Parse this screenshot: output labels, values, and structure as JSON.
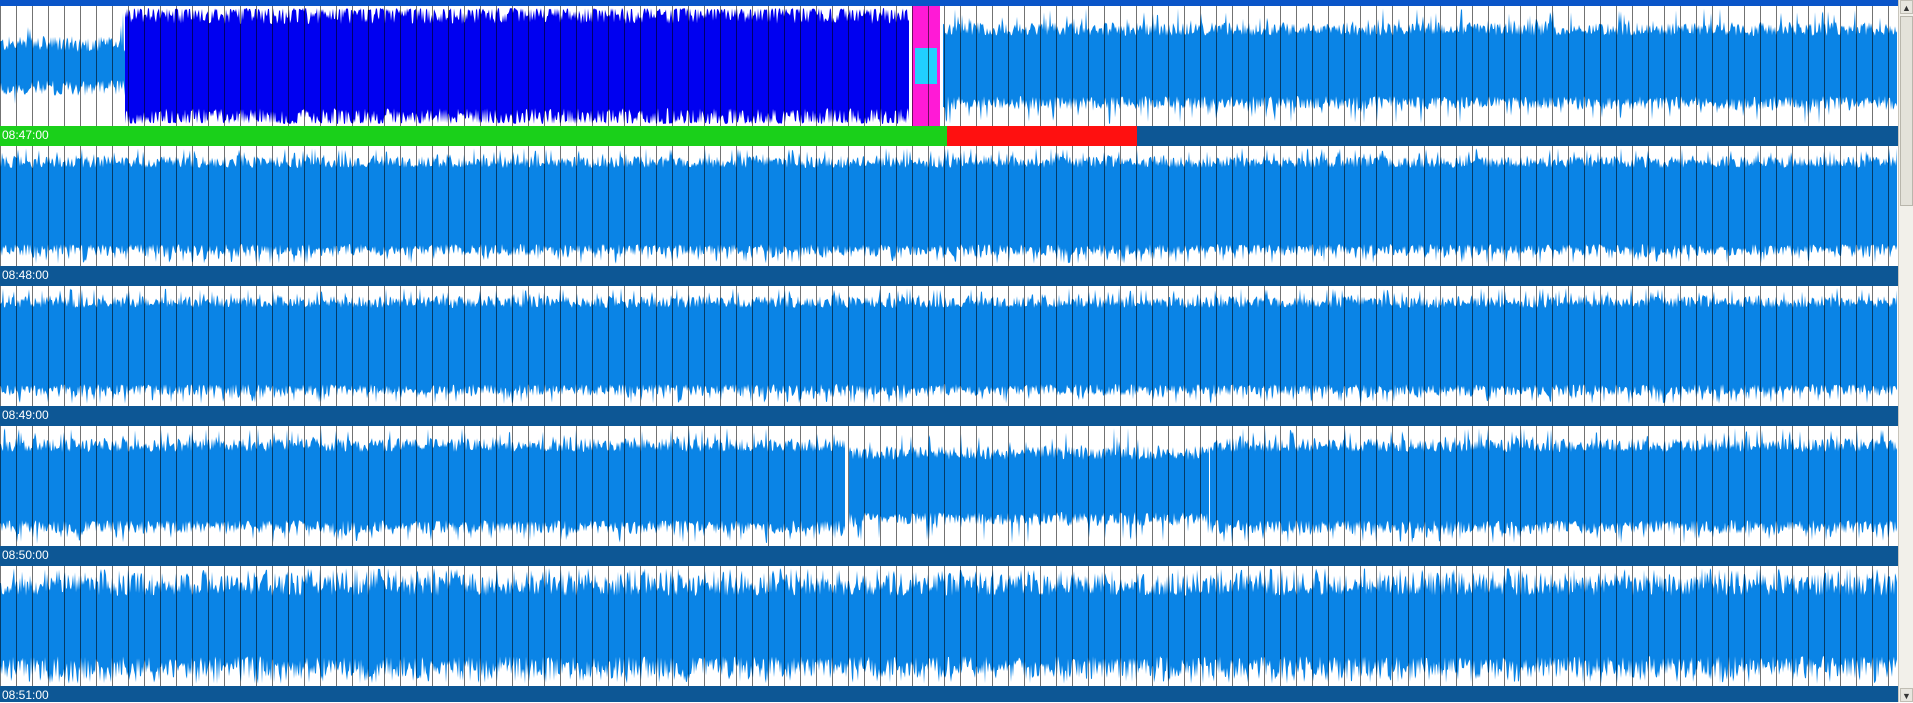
{
  "colors": {
    "background": "#ffffff",
    "waveform": "#0a84e6",
    "playing_waveform": "#0000f0",
    "playhead": "#ff1ad6",
    "playhead_inner": "#20d0ff",
    "grid": "#000000",
    "timebar": "#0d5795",
    "played": "#1ad01a",
    "loading": "#ff1010",
    "label": "#ffffff"
  },
  "rows": [
    {
      "label": "08:47:00",
      "played_fraction": 0.499,
      "loading_fraction": 0.1,
      "playing_region_fraction": [
        0.066,
        0.479
      ],
      "playhead_fraction": 0.488
    },
    {
      "label": "08:48:00"
    },
    {
      "label": "08:49:00"
    },
    {
      "label": "08:50:00"
    },
    {
      "label": "08:51:00"
    }
  ],
  "scrollbar": {
    "up_icon": "scroll-up-arrow-icon",
    "down_icon": "scroll-down-arrow-icon",
    "position_fraction": 0
  }
}
